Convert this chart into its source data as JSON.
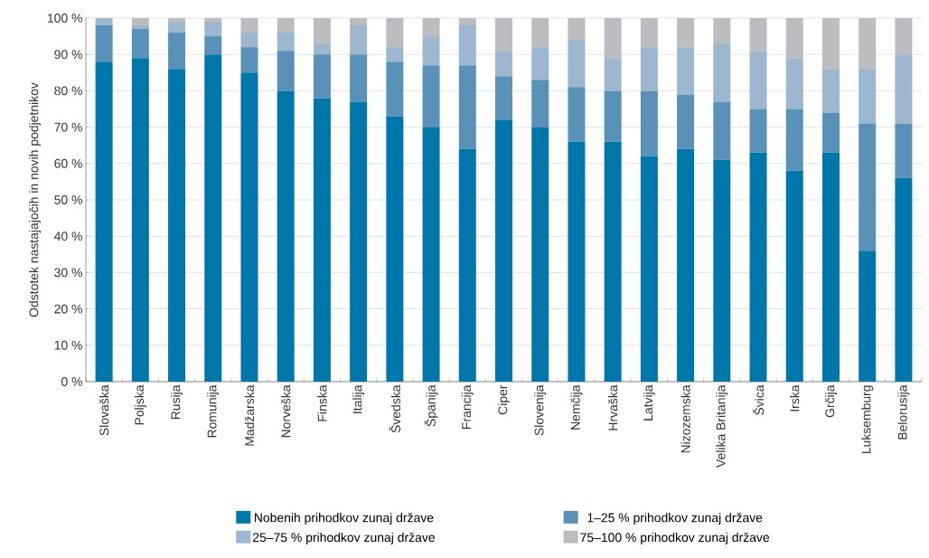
{
  "chart_data": {
    "type": "bar",
    "stacked": true,
    "ylabel": "Odstotek nastajajočih in novih podjetnikov",
    "categories": [
      "Slovaška",
      "Poljska",
      "Rusija",
      "Romunija",
      "Madžarska",
      "Norveška",
      "Finska",
      "Italija",
      "Švedska",
      "Španija",
      "Francija",
      "Ciper",
      "Slovenija",
      "Nemčija",
      "Hrvaška",
      "Latvija",
      "Nizozemska",
      "Velika Britanija",
      "Švica",
      "Irska",
      "Grčija",
      "Luksemburg",
      "Belorusija"
    ],
    "series": [
      {
        "name": "Nobenih prihodkov zunaj države",
        "color": "#0077aa",
        "values": [
          88,
          89,
          86,
          90,
          85,
          80,
          78,
          77,
          73,
          70,
          64,
          72,
          70,
          66,
          66,
          62,
          64,
          61,
          63,
          58,
          63,
          36,
          56
        ]
      },
      {
        "name": "1–25 % prihodkov zunaj države",
        "color": "#5a91b8",
        "values": [
          10,
          8,
          10,
          5,
          7,
          11,
          12,
          13,
          15,
          17,
          23,
          12,
          13,
          15,
          14,
          18,
          15,
          16,
          12,
          17,
          11,
          35,
          15
        ]
      },
      {
        "name": "25–75 % prihodkov zunaj države",
        "color": "#9cb7ce",
        "values": [
          2,
          1,
          3,
          4,
          4,
          5,
          3,
          8,
          4,
          8,
          11,
          7,
          9,
          13,
          9,
          12,
          13,
          16,
          16,
          14,
          12,
          15,
          19
        ]
      },
      {
        "name": "75–100 % prihodkov zunaj države",
        "color": "#bcbdc0",
        "values": [
          0,
          2,
          1,
          1,
          4,
          4,
          7,
          2,
          8,
          5,
          2,
          9,
          8,
          6,
          11,
          8,
          8,
          7,
          9,
          11,
          14,
          14,
          10
        ]
      }
    ],
    "ylim": [
      0,
      100
    ],
    "yticks": [
      {
        "value": 0,
        "label": "0 %"
      },
      {
        "value": 10,
        "label": "10 %"
      },
      {
        "value": 20,
        "label": "20 %"
      },
      {
        "value": 30,
        "label": "30 %"
      },
      {
        "value": 40,
        "label": "40 %"
      },
      {
        "value": 50,
        "label": "50 %"
      },
      {
        "value": 60,
        "label": "60 %"
      },
      {
        "value": 70,
        "label": "70 %"
      },
      {
        "value": 80,
        "label": "80 %"
      },
      {
        "value": 90,
        "label": "90 %"
      },
      {
        "value": 100,
        "label": "100 %"
      }
    ],
    "grid": "y",
    "legend": "bottom"
  }
}
